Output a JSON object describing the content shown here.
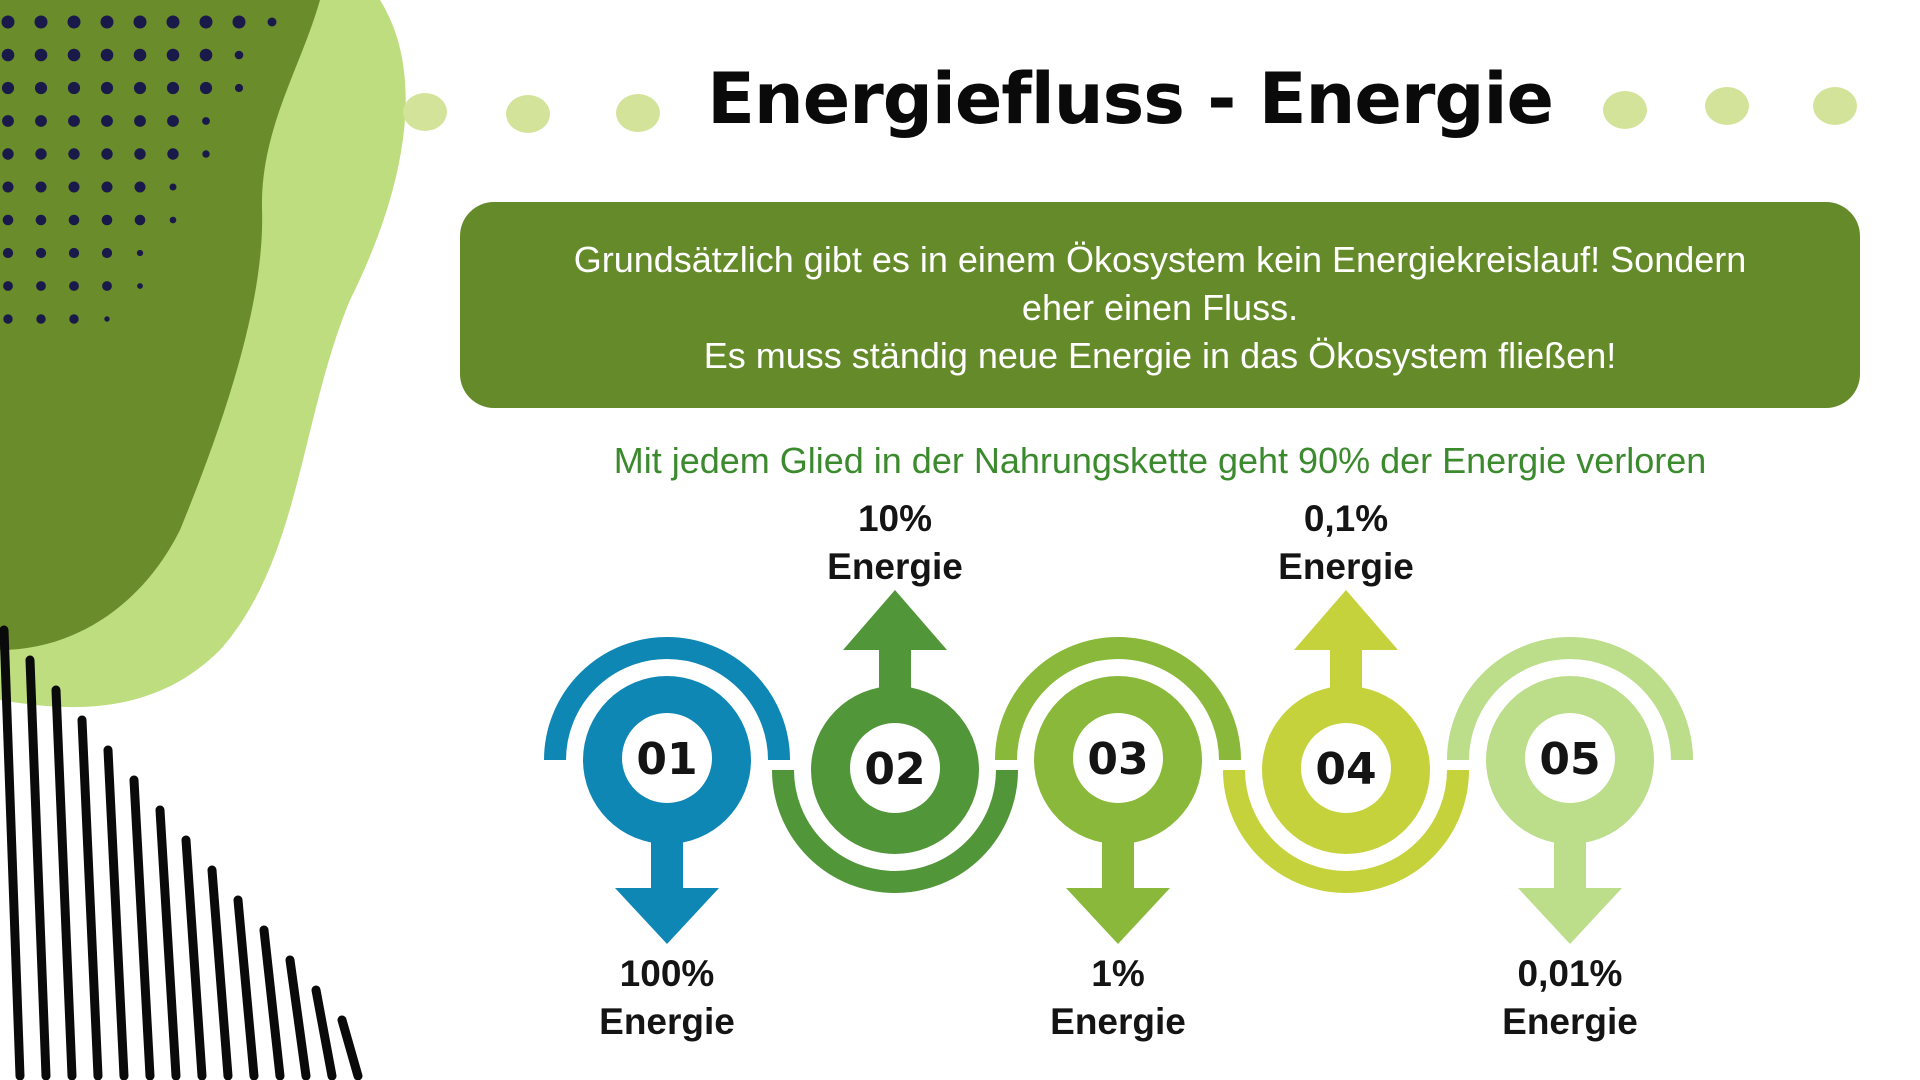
{
  "title": "Energiefluss - Energie",
  "info_box": {
    "line1": "Grundsätzlich gibt es in einem Ökosystem kein Energiekreislauf!  Sondern",
    "line2": "eher einen Fluss.",
    "line3": "Es muss ständig neue Energie in das Ökosystem fließen!"
  },
  "subtitle": "Mit jedem Glied in der Nahrungskette geht 90% der Energie verloren",
  "steps": [
    {
      "number": "01",
      "value": "100%",
      "unit": "Energie",
      "color": "#0e87b5",
      "arrow": "down"
    },
    {
      "number": "02",
      "value": "10%",
      "unit": "Energie",
      "color": "#52963a",
      "arrow": "up"
    },
    {
      "number": "03",
      "value": "1%",
      "unit": "Energie",
      "color": "#8ab83a",
      "arrow": "down"
    },
    {
      "number": "04",
      "value": "0,1%",
      "unit": "Energie",
      "color": "#c5d23c",
      "arrow": "up"
    },
    {
      "number": "05",
      "value": "0,01%",
      "unit": "Energie",
      "color": "#bcdd8a",
      "arrow": "down"
    }
  ],
  "colors": {
    "accent_box": "#658a2a",
    "subtitle_text": "#3b8a2e",
    "dark_blob": "#6b8c2a",
    "light_blob": "#bddd7e",
    "dots": "#d4e39a",
    "halftone": "#1a1a4a"
  }
}
